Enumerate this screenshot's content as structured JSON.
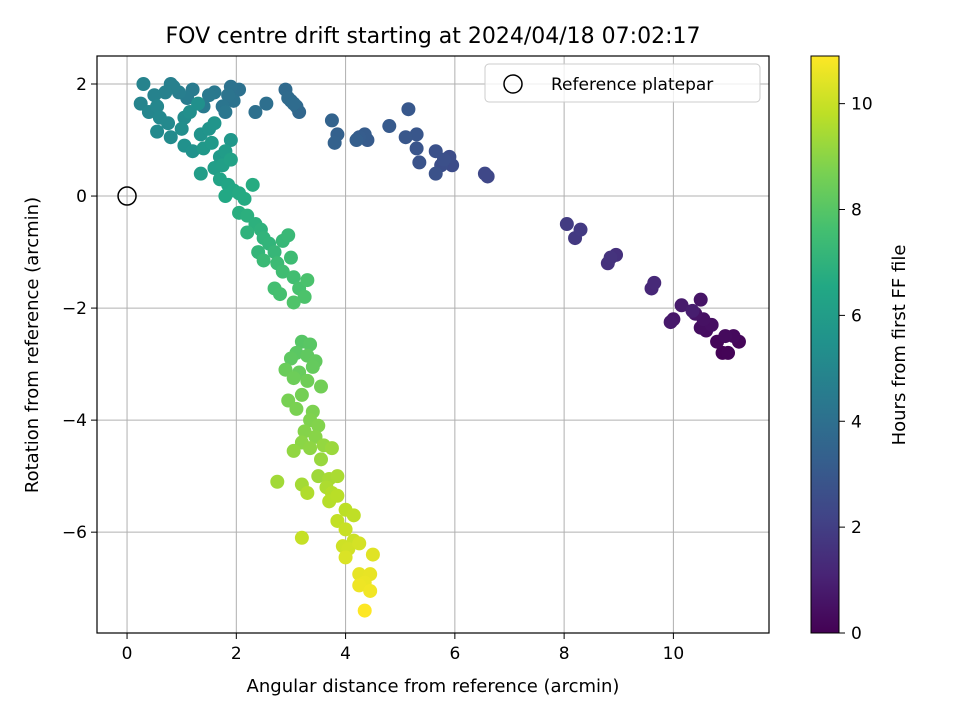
{
  "chart_data": {
    "type": "scatter",
    "title": "FOV centre drift starting at 2024/04/18 07:02:17",
    "xlabel": "Angular distance from reference (arcmin)",
    "ylabel": "Rotation from reference (arcmin)",
    "xlim": [
      -0.55,
      11.75
    ],
    "ylim": [
      -7.8,
      2.5
    ],
    "xticks": [
      0,
      2,
      4,
      6,
      8,
      10
    ],
    "yticks": [
      2,
      0,
      -2,
      -4,
      -6
    ],
    "grid": true,
    "legend": {
      "placement": "top-right",
      "entries": [
        {
          "label": "Reference platepar",
          "marker": "open-circle"
        }
      ]
    },
    "reference_point": {
      "x": 0,
      "y": 0
    },
    "colorbar": {
      "label": "Hours from first FF file",
      "colormap": "viridis",
      "range": [
        0,
        10.9
      ],
      "ticks": [
        0,
        2,
        4,
        6,
        8,
        10
      ]
    },
    "points": [
      {
        "x": 10.9,
        "y": -2.8,
        "c": 0.05
      },
      {
        "x": 11.0,
        "y": -2.8,
        "c": 0.1
      },
      {
        "x": 11.2,
        "y": -2.6,
        "c": 0.15
      },
      {
        "x": 10.8,
        "y": -2.6,
        "c": 0.2
      },
      {
        "x": 11.1,
        "y": -2.5,
        "c": 0.25
      },
      {
        "x": 10.95,
        "y": -2.5,
        "c": 0.3
      },
      {
        "x": 10.6,
        "y": -2.4,
        "c": 0.35
      },
      {
        "x": 10.5,
        "y": -2.35,
        "c": 0.4
      },
      {
        "x": 10.7,
        "y": -2.3,
        "c": 0.45
      },
      {
        "x": 10.55,
        "y": -2.2,
        "c": 0.5
      },
      {
        "x": 10.4,
        "y": -2.1,
        "c": 0.55
      },
      {
        "x": 10.5,
        "y": -1.85,
        "c": 0.6
      },
      {
        "x": 10.0,
        "y": -2.2,
        "c": 0.7
      },
      {
        "x": 9.95,
        "y": -2.25,
        "c": 0.75
      },
      {
        "x": 10.15,
        "y": -1.95,
        "c": 0.8
      },
      {
        "x": 10.35,
        "y": -2.05,
        "c": 0.9
      },
      {
        "x": 9.6,
        "y": -1.65,
        "c": 1.2
      },
      {
        "x": 9.65,
        "y": -1.55,
        "c": 1.25
      },
      {
        "x": 8.95,
        "y": -1.05,
        "c": 1.5
      },
      {
        "x": 8.8,
        "y": -1.2,
        "c": 1.55
      },
      {
        "x": 8.85,
        "y": -1.1,
        "c": 1.6
      },
      {
        "x": 8.2,
        "y": -0.75,
        "c": 1.8
      },
      {
        "x": 8.3,
        "y": -0.6,
        "c": 1.85
      },
      {
        "x": 8.05,
        "y": -0.5,
        "c": 1.9
      },
      {
        "x": 6.6,
        "y": 0.35,
        "c": 2.3
      },
      {
        "x": 6.55,
        "y": 0.4,
        "c": 2.35
      },
      {
        "x": 5.95,
        "y": 0.55,
        "c": 2.5
      },
      {
        "x": 5.9,
        "y": 0.7,
        "c": 2.55
      },
      {
        "x": 5.75,
        "y": 0.55,
        "c": 2.6
      },
      {
        "x": 5.8,
        "y": 0.65,
        "c": 2.65
      },
      {
        "x": 5.65,
        "y": 0.8,
        "c": 2.7
      },
      {
        "x": 5.65,
        "y": 0.4,
        "c": 2.75
      },
      {
        "x": 5.35,
        "y": 0.6,
        "c": 2.8
      },
      {
        "x": 5.3,
        "y": 0.85,
        "c": 2.85
      },
      {
        "x": 5.3,
        "y": 1.1,
        "c": 2.9
      },
      {
        "x": 5.1,
        "y": 1.05,
        "c": 2.95
      },
      {
        "x": 5.15,
        "y": 1.55,
        "c": 3.0
      },
      {
        "x": 4.8,
        "y": 1.25,
        "c": 3.05
      },
      {
        "x": 4.4,
        "y": 1.0,
        "c": 3.1
      },
      {
        "x": 4.35,
        "y": 1.1,
        "c": 3.15
      },
      {
        "x": 4.25,
        "y": 1.05,
        "c": 3.2
      },
      {
        "x": 4.2,
        "y": 1.0,
        "c": 3.25
      },
      {
        "x": 3.85,
        "y": 1.1,
        "c": 3.35
      },
      {
        "x": 3.8,
        "y": 0.95,
        "c": 3.4
      },
      {
        "x": 3.75,
        "y": 1.35,
        "c": 3.45
      },
      {
        "x": 3.15,
        "y": 1.5,
        "c": 3.6
      },
      {
        "x": 3.1,
        "y": 1.6,
        "c": 3.65
      },
      {
        "x": 3.0,
        "y": 1.7,
        "c": 3.7
      },
      {
        "x": 2.9,
        "y": 1.9,
        "c": 3.75
      },
      {
        "x": 2.95,
        "y": 1.75,
        "c": 3.8
      },
      {
        "x": 3.05,
        "y": 1.65,
        "c": 3.85
      },
      {
        "x": 2.55,
        "y": 1.65,
        "c": 3.95
      },
      {
        "x": 2.35,
        "y": 1.5,
        "c": 4.0
      },
      {
        "x": 2.05,
        "y": 1.9,
        "c": 4.05
      },
      {
        "x": 1.9,
        "y": 1.95,
        "c": 4.1
      },
      {
        "x": 1.95,
        "y": 1.7,
        "c": 4.15
      },
      {
        "x": 1.85,
        "y": 1.8,
        "c": 4.2
      },
      {
        "x": 1.75,
        "y": 1.6,
        "c": 4.25
      },
      {
        "x": 1.8,
        "y": 1.5,
        "c": 4.3
      },
      {
        "x": 1.6,
        "y": 1.85,
        "c": 4.35
      },
      {
        "x": 1.5,
        "y": 1.8,
        "c": 4.4
      },
      {
        "x": 1.4,
        "y": 1.6,
        "c": 4.45
      },
      {
        "x": 1.2,
        "y": 1.9,
        "c": 4.5
      },
      {
        "x": 1.1,
        "y": 1.75,
        "c": 4.55
      },
      {
        "x": 0.95,
        "y": 1.85,
        "c": 4.6
      },
      {
        "x": 0.8,
        "y": 2.0,
        "c": 4.65
      },
      {
        "x": 0.85,
        "y": 1.95,
        "c": 4.7
      },
      {
        "x": 0.7,
        "y": 1.85,
        "c": 4.75
      },
      {
        "x": 0.5,
        "y": 1.8,
        "c": 4.8
      },
      {
        "x": 0.3,
        "y": 2.0,
        "c": 4.85
      },
      {
        "x": 0.25,
        "y": 1.65,
        "c": 4.9
      },
      {
        "x": 0.4,
        "y": 1.5,
        "c": 4.95
      },
      {
        "x": 0.55,
        "y": 1.6,
        "c": 5.0
      },
      {
        "x": 0.6,
        "y": 1.4,
        "c": 5.05
      },
      {
        "x": 0.75,
        "y": 1.3,
        "c": 5.1
      },
      {
        "x": 0.55,
        "y": 1.15,
        "c": 5.15
      },
      {
        "x": 0.8,
        "y": 1.05,
        "c": 5.2
      },
      {
        "x": 1.05,
        "y": 1.4,
        "c": 5.25
      },
      {
        "x": 1.0,
        "y": 1.2,
        "c": 5.3
      },
      {
        "x": 1.15,
        "y": 1.5,
        "c": 5.35
      },
      {
        "x": 1.3,
        "y": 1.65,
        "c": 5.4
      },
      {
        "x": 1.05,
        "y": 0.9,
        "c": 5.45
      },
      {
        "x": 1.2,
        "y": 0.8,
        "c": 5.5
      },
      {
        "x": 1.35,
        "y": 1.1,
        "c": 5.55
      },
      {
        "x": 1.5,
        "y": 1.2,
        "c": 5.6
      },
      {
        "x": 1.6,
        "y": 1.3,
        "c": 5.65
      },
      {
        "x": 1.9,
        "y": 1.0,
        "c": 5.75
      },
      {
        "x": 1.4,
        "y": 0.85,
        "c": 5.8
      },
      {
        "x": 1.55,
        "y": 0.95,
        "c": 5.85
      },
      {
        "x": 1.7,
        "y": 0.7,
        "c": 5.9
      },
      {
        "x": 1.8,
        "y": 0.8,
        "c": 5.95
      },
      {
        "x": 1.35,
        "y": 0.4,
        "c": 6.0
      },
      {
        "x": 1.6,
        "y": 0.5,
        "c": 6.05
      },
      {
        "x": 1.75,
        "y": 0.55,
        "c": 6.1
      },
      {
        "x": 1.9,
        "y": 0.65,
        "c": 6.2
      },
      {
        "x": 1.7,
        "y": 0.3,
        "c": 6.3
      },
      {
        "x": 1.85,
        "y": 0.2,
        "c": 6.4
      },
      {
        "x": 1.95,
        "y": 0.1,
        "c": 6.5
      },
      {
        "x": 1.8,
        "y": 0.0,
        "c": 6.55
      },
      {
        "x": 2.05,
        "y": 0.05,
        "c": 6.6
      },
      {
        "x": 2.15,
        "y": -0.05,
        "c": 6.65
      },
      {
        "x": 2.3,
        "y": 0.2,
        "c": 6.7
      },
      {
        "x": 2.05,
        "y": -0.3,
        "c": 6.8
      },
      {
        "x": 2.2,
        "y": -0.35,
        "c": 6.85
      },
      {
        "x": 2.35,
        "y": -0.5,
        "c": 6.9
      },
      {
        "x": 2.45,
        "y": -0.6,
        "c": 6.95
      },
      {
        "x": 2.2,
        "y": -0.65,
        "c": 7.0
      },
      {
        "x": 2.5,
        "y": -0.75,
        "c": 7.05
      },
      {
        "x": 2.6,
        "y": -0.85,
        "c": 7.1
      },
      {
        "x": 2.4,
        "y": -1.0,
        "c": 7.15
      },
      {
        "x": 2.7,
        "y": -1.0,
        "c": 7.2
      },
      {
        "x": 2.85,
        "y": -0.8,
        "c": 7.25
      },
      {
        "x": 2.95,
        "y": -0.7,
        "c": 7.3
      },
      {
        "x": 2.5,
        "y": -1.15,
        "c": 7.35
      },
      {
        "x": 2.75,
        "y": -1.2,
        "c": 7.4
      },
      {
        "x": 3.0,
        "y": -1.1,
        "c": 7.45
      },
      {
        "x": 2.85,
        "y": -1.35,
        "c": 7.5
      },
      {
        "x": 3.05,
        "y": -1.45,
        "c": 7.55
      },
      {
        "x": 2.7,
        "y": -1.65,
        "c": 7.6
      },
      {
        "x": 2.8,
        "y": -1.75,
        "c": 7.65
      },
      {
        "x": 3.15,
        "y": -1.65,
        "c": 7.7
      },
      {
        "x": 3.3,
        "y": -1.5,
        "c": 7.75
      },
      {
        "x": 3.25,
        "y": -1.8,
        "c": 7.8
      },
      {
        "x": 3.05,
        "y": -1.9,
        "c": 7.85
      },
      {
        "x": 3.2,
        "y": -2.6,
        "c": 8.0
      },
      {
        "x": 3.35,
        "y": -2.65,
        "c": 8.05
      },
      {
        "x": 3.1,
        "y": -2.8,
        "c": 8.1
      },
      {
        "x": 3.0,
        "y": -2.9,
        "c": 8.15
      },
      {
        "x": 3.3,
        "y": -2.85,
        "c": 8.2
      },
      {
        "x": 3.45,
        "y": -2.95,
        "c": 8.25
      },
      {
        "x": 3.4,
        "y": -3.05,
        "c": 8.3
      },
      {
        "x": 3.15,
        "y": -3.15,
        "c": 8.35
      },
      {
        "x": 2.9,
        "y": -3.1,
        "c": 8.4
      },
      {
        "x": 3.05,
        "y": -3.25,
        "c": 8.45
      },
      {
        "x": 3.3,
        "y": -3.3,
        "c": 8.5
      },
      {
        "x": 3.55,
        "y": -3.4,
        "c": 8.55
      },
      {
        "x": 3.2,
        "y": -3.55,
        "c": 8.6
      },
      {
        "x": 2.95,
        "y": -3.65,
        "c": 8.65
      },
      {
        "x": 3.1,
        "y": -3.8,
        "c": 8.7
      },
      {
        "x": 3.4,
        "y": -3.85,
        "c": 8.75
      },
      {
        "x": 3.35,
        "y": -4.0,
        "c": 8.8
      },
      {
        "x": 3.5,
        "y": -4.1,
        "c": 8.85
      },
      {
        "x": 3.25,
        "y": -4.2,
        "c": 8.9
      },
      {
        "x": 3.45,
        "y": -4.3,
        "c": 8.95
      },
      {
        "x": 3.2,
        "y": -4.4,
        "c": 9.0
      },
      {
        "x": 3.35,
        "y": -4.5,
        "c": 9.05
      },
      {
        "x": 3.05,
        "y": -4.55,
        "c": 9.1
      },
      {
        "x": 3.6,
        "y": -4.45,
        "c": 9.15
      },
      {
        "x": 3.55,
        "y": -4.7,
        "c": 9.2
      },
      {
        "x": 3.75,
        "y": -4.5,
        "c": 9.25
      },
      {
        "x": 3.5,
        "y": -5.0,
        "c": 9.3
      },
      {
        "x": 2.75,
        "y": -5.1,
        "c": 9.35
      },
      {
        "x": 3.2,
        "y": -5.15,
        "c": 9.4
      },
      {
        "x": 3.7,
        "y": -5.05,
        "c": 9.45
      },
      {
        "x": 3.85,
        "y": -5.0,
        "c": 9.5
      },
      {
        "x": 3.65,
        "y": -5.2,
        "c": 9.55
      },
      {
        "x": 3.3,
        "y": -5.3,
        "c": 9.6
      },
      {
        "x": 3.75,
        "y": -5.3,
        "c": 9.65
      },
      {
        "x": 3.7,
        "y": -5.45,
        "c": 9.7
      },
      {
        "x": 3.85,
        "y": -5.35,
        "c": 9.75
      },
      {
        "x": 4.0,
        "y": -5.6,
        "c": 9.8
      },
      {
        "x": 4.15,
        "y": -5.7,
        "c": 9.85
      },
      {
        "x": 3.85,
        "y": -5.8,
        "c": 9.9
      },
      {
        "x": 3.2,
        "y": -6.1,
        "c": 9.95
      },
      {
        "x": 4.0,
        "y": -5.95,
        "c": 10.0
      },
      {
        "x": 4.15,
        "y": -6.15,
        "c": 10.05
      },
      {
        "x": 3.95,
        "y": -6.25,
        "c": 10.1
      },
      {
        "x": 4.05,
        "y": -6.3,
        "c": 10.15
      },
      {
        "x": 4.25,
        "y": -6.2,
        "c": 10.2
      },
      {
        "x": 4.0,
        "y": -6.45,
        "c": 10.3
      },
      {
        "x": 4.5,
        "y": -6.4,
        "c": 10.4
      },
      {
        "x": 4.25,
        "y": -6.75,
        "c": 10.5
      },
      {
        "x": 4.45,
        "y": -6.75,
        "c": 10.55
      },
      {
        "x": 4.35,
        "y": -6.9,
        "c": 10.6
      },
      {
        "x": 4.25,
        "y": -6.95,
        "c": 10.65
      },
      {
        "x": 4.45,
        "y": -7.05,
        "c": 10.7
      },
      {
        "x": 4.35,
        "y": -7.4,
        "c": 10.9
      }
    ]
  }
}
